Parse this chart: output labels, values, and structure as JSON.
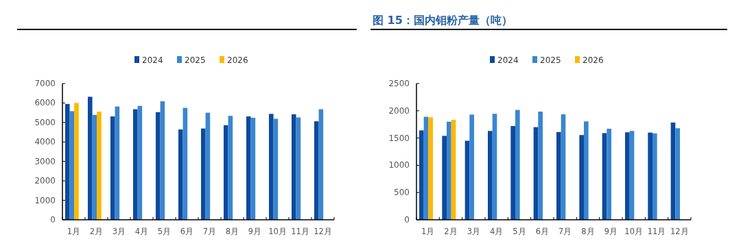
{
  "chart_data": [
    {
      "type": "bar",
      "categories": [
        "1月",
        "2月",
        "3月",
        "4月",
        "5月",
        "6月",
        "7月",
        "8月",
        "9月",
        "10月",
        "11月",
        "12月"
      ],
      "series": [
        {
          "name": "2024",
          "color": "#0d4a9e",
          "values": [
            5950,
            6320,
            5310,
            5680,
            5530,
            4640,
            4690,
            4860,
            5310,
            5440,
            5420,
            5060
          ]
        },
        {
          "name": "2025",
          "color": "#3a86d0",
          "values": [
            5580,
            5390,
            5820,
            5850,
            6090,
            5750,
            5500,
            5340,
            5240,
            5190,
            5260,
            5680
          ]
        },
        {
          "name": "2026",
          "color": "#ffb800",
          "values": [
            6000,
            5560,
            null,
            null,
            null,
            null,
            null,
            null,
            null,
            null,
            null,
            null
          ]
        }
      ],
      "ylim": [
        0,
        7000
      ],
      "yticks": [
        0,
        1000,
        2000,
        3000,
        4000,
        5000,
        6000,
        7000
      ],
      "legend": "top",
      "grid": false
    },
    {
      "type": "bar",
      "title": "图 15：国内钼粉产量（吨）",
      "categories": [
        "1月",
        "2月",
        "3月",
        "4月",
        "5月",
        "6月",
        "7月",
        "8月",
        "9月",
        "10月",
        "11月",
        "12月"
      ],
      "series": [
        {
          "name": "2024",
          "color": "#0d4a9e",
          "values": [
            1640,
            1540,
            1450,
            1630,
            1720,
            1700,
            1610,
            1555,
            1590,
            1605,
            1600,
            1785
          ]
        },
        {
          "name": "2025",
          "color": "#3a86d0",
          "values": [
            1890,
            1800,
            1930,
            1945,
            2015,
            1985,
            1935,
            1805,
            1670,
            1630,
            1585,
            1680
          ]
        },
        {
          "name": "2026",
          "color": "#ffb800",
          "values": [
            1880,
            1835,
            null,
            null,
            null,
            null,
            null,
            null,
            null,
            null,
            null,
            null
          ]
        }
      ],
      "ylim": [
        0,
        2500
      ],
      "yticks": [
        0,
        500,
        1000,
        1500,
        2000,
        2500
      ],
      "legend": "top",
      "grid": false
    }
  ]
}
